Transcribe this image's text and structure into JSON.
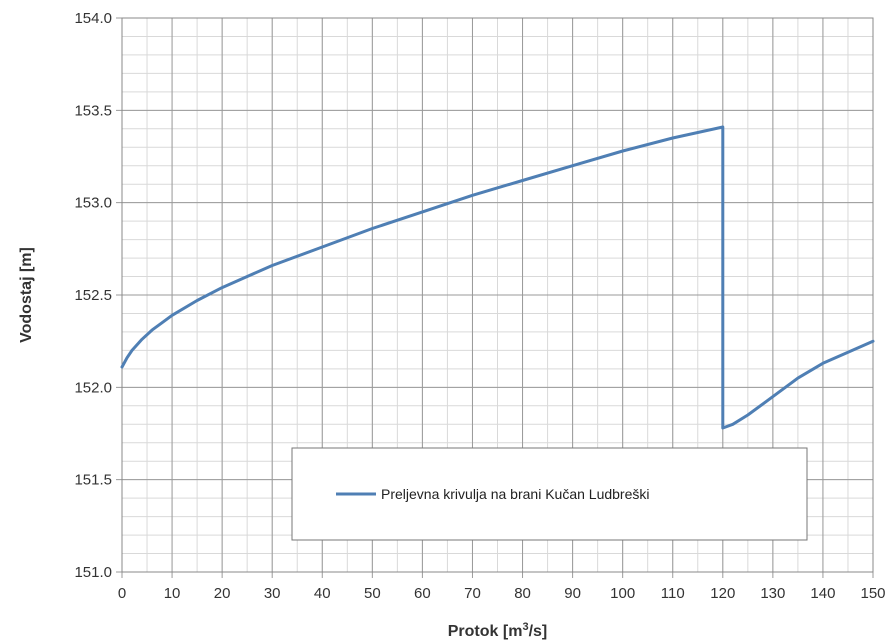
{
  "chart_data": {
    "type": "line",
    "title": "",
    "xlabel": "Protok",
    "xlabel_unit_prefix": "[m",
    "xlabel_unit_sup": "3",
    "xlabel_unit_suffix": "/s]",
    "ylabel": "Vodostaj  [m]",
    "xlim": [
      0,
      150
    ],
    "ylim": [
      151.0,
      154.0
    ],
    "x_major_ticks": [
      0,
      10,
      20,
      30,
      40,
      50,
      60,
      70,
      80,
      90,
      100,
      110,
      120,
      130,
      140,
      150
    ],
    "x_tick_labels": [
      "0",
      "10",
      "20",
      "30",
      "40",
      "50",
      "60",
      "70",
      "80",
      "90",
      "100",
      "110",
      "120",
      "130",
      "140",
      "150"
    ],
    "y_major_ticks": [
      151.0,
      151.5,
      152.0,
      152.5,
      153.0,
      153.5,
      154.0
    ],
    "y_tick_labels": [
      "151.0",
      "151.5",
      "152.0",
      "152.5",
      "153.0",
      "153.5",
      "154.0"
    ],
    "y_minor_step": 0.1,
    "x_minor_step": 5,
    "grid": true,
    "legend_position": "bottom-center",
    "series": [
      {
        "name": "Preljevna krivulja na brani Kučan Ludbreški",
        "color": "#4f7fb4",
        "x": [
          0,
          1,
          2,
          4,
          6,
          8,
          10,
          15,
          20,
          25,
          30,
          40,
          50,
          60,
          70,
          80,
          90,
          100,
          110,
          120,
          120,
          122,
          125,
          130,
          135,
          140,
          145,
          150
        ],
        "y": [
          152.11,
          152.16,
          152.2,
          152.26,
          152.31,
          152.35,
          152.39,
          152.47,
          152.54,
          152.6,
          152.66,
          152.76,
          152.86,
          152.95,
          153.04,
          153.12,
          153.2,
          153.28,
          153.35,
          153.41,
          151.78,
          151.8,
          151.85,
          151.95,
          152.05,
          152.13,
          152.19,
          152.25
        ]
      }
    ]
  }
}
